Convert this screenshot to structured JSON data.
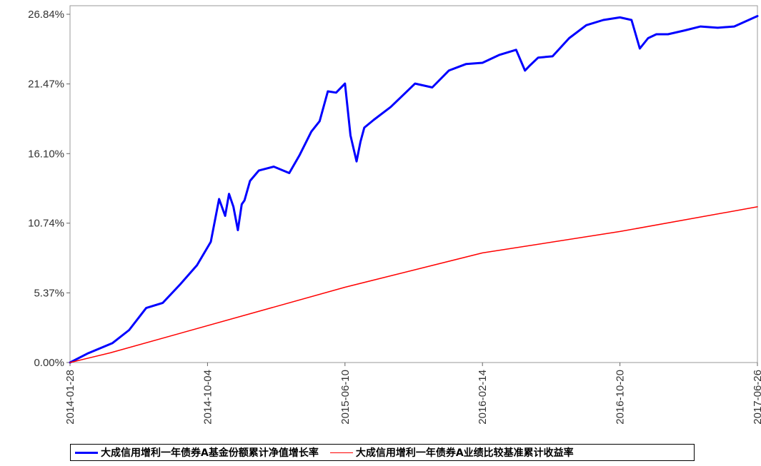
{
  "chart_data": {
    "type": "line",
    "title": "",
    "xlabel": "",
    "ylabel": "",
    "x_tick_labels": [
      "2014-01-28",
      "2014-10-04",
      "2015-06-10",
      "2016-02-14",
      "2016-10-20",
      "2017-06-26"
    ],
    "y_tick_labels": [
      "0.00%",
      "5.37%",
      "10.74%",
      "16.10%",
      "21.47%",
      "26.84%"
    ],
    "x_range": [
      "2014-01-28",
      "2017-06-26"
    ],
    "ylim": [
      0,
      27.5
    ],
    "grid": false,
    "legend_position": "bottom",
    "series": [
      {
        "name": "大成信用增利一年债券A基金份额累计净值增长率",
        "color": "#0000ff",
        "x": [
          "2014-01-28",
          "2014-03-01",
          "2014-04-15",
          "2014-05-15",
          "2014-06-15",
          "2014-07-15",
          "2014-08-15",
          "2014-09-15",
          "2014-10-10",
          "2014-10-25",
          "2014-11-05",
          "2014-11-12",
          "2014-11-20",
          "2014-11-28",
          "2014-12-05",
          "2014-12-10",
          "2014-12-20",
          "2015-01-05",
          "2015-02-01",
          "2015-03-01",
          "2015-03-20",
          "2015-04-10",
          "2015-04-25",
          "2015-05-10",
          "2015-05-25",
          "2015-06-10",
          "2015-06-20",
          "2015-07-01",
          "2015-07-08",
          "2015-07-15",
          "2015-08-01",
          "2015-09-01",
          "2015-10-15",
          "2015-11-15",
          "2015-12-15",
          "2016-01-15",
          "2016-02-14",
          "2016-03-15",
          "2016-04-15",
          "2016-05-01",
          "2016-05-10",
          "2016-05-25",
          "2016-06-20",
          "2016-07-20",
          "2016-08-20",
          "2016-09-20",
          "2016-10-20",
          "2016-11-10",
          "2016-11-25",
          "2016-12-10",
          "2016-12-25",
          "2017-01-15",
          "2017-02-15",
          "2017-03-15",
          "2017-04-15",
          "2017-05-15",
          "2017-06-26"
        ],
        "values": [
          0.0,
          0.7,
          1.5,
          2.5,
          4.2,
          4.6,
          6.0,
          7.5,
          9.3,
          12.6,
          11.3,
          13.0,
          12.0,
          10.2,
          12.2,
          12.5,
          14.0,
          14.8,
          15.1,
          14.6,
          16.0,
          17.8,
          18.6,
          20.9,
          20.8,
          21.5,
          17.5,
          15.5,
          17.0,
          18.1,
          18.7,
          19.7,
          21.5,
          21.2,
          22.5,
          23.0,
          23.1,
          23.7,
          24.1,
          22.5,
          22.9,
          23.5,
          23.6,
          25.0,
          26.0,
          26.4,
          26.6,
          26.4,
          24.2,
          25.0,
          25.3,
          25.3,
          25.6,
          25.9,
          25.8,
          25.9,
          26.7
        ]
      },
      {
        "name": "大成信用增利一年债券A业绩比较基准累计收益率",
        "color": "#ff0000",
        "x": [
          "2014-01-28",
          "2014-04-11",
          "2015-06-10",
          "2016-02-14",
          "2016-10-20",
          "2017-06-26"
        ],
        "values": [
          0.0,
          0.75,
          5.8,
          8.45,
          10.1,
          12.0
        ]
      }
    ]
  }
}
